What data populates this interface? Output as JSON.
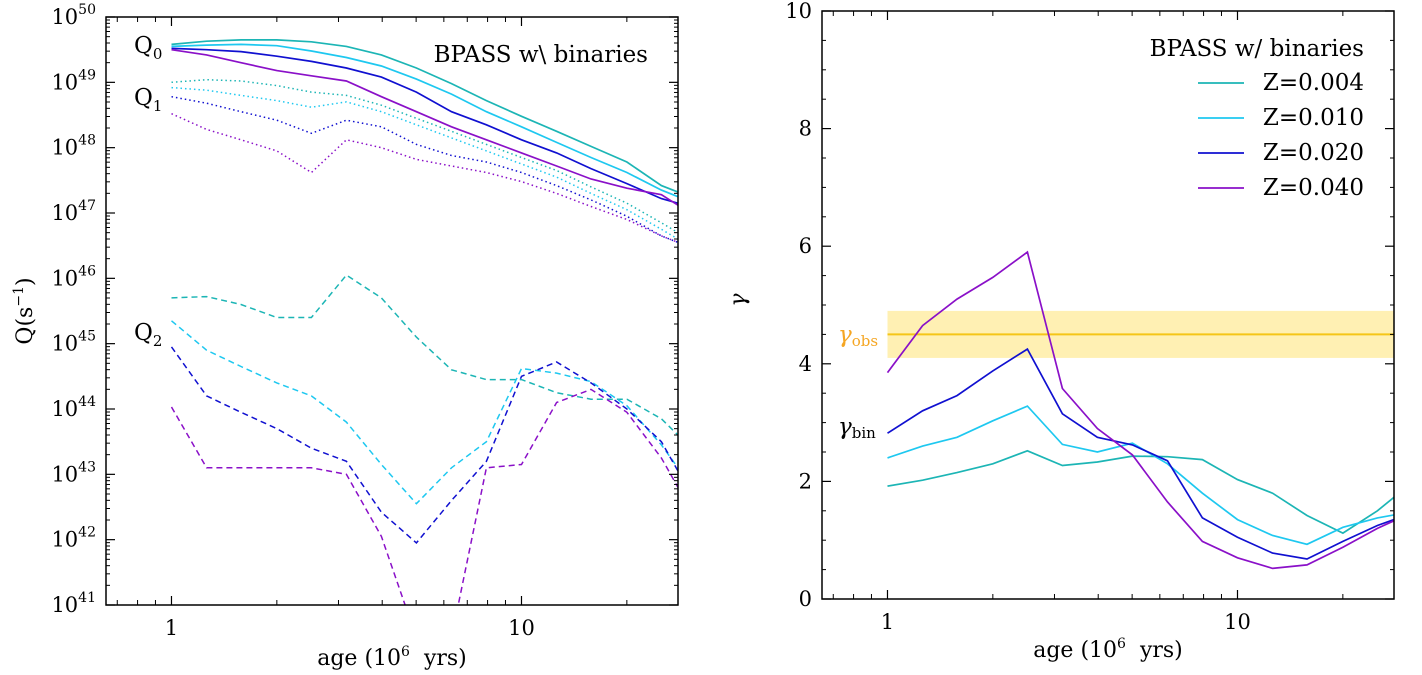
{
  "figure": {
    "title": ""
  },
  "chart_data": [
    {
      "type": "line",
      "panel": "left",
      "xlabel": "age (10^6  yrs)",
      "xlabel_main": "age (10",
      "xlabel_exp": "6",
      "xlabel_tail": "  yrs)",
      "ylabel": "Q(s^-1)",
      "ylabel_main": "Q(s",
      "ylabel_exp": "−1",
      "ylabel_tail": ")",
      "xscale": "log",
      "yscale": "log",
      "xlim": [
        0.65,
        28
      ],
      "ylim_log10": [
        41,
        50
      ],
      "xticks": [
        {
          "v": 1,
          "label": "1"
        },
        {
          "v": 10,
          "label": "10"
        }
      ],
      "yticks": [
        {
          "exp": 41,
          "base": "10",
          "sup": "41"
        },
        {
          "exp": 42,
          "base": "10",
          "sup": "42"
        },
        {
          "exp": 43,
          "base": "10",
          "sup": "43"
        },
        {
          "exp": 44,
          "base": "10",
          "sup": "44"
        },
        {
          "exp": 45,
          "base": "10",
          "sup": "45"
        },
        {
          "exp": 46,
          "base": "10",
          "sup": "46"
        },
        {
          "exp": 47,
          "base": "10",
          "sup": "47"
        },
        {
          "exp": 48,
          "base": "10",
          "sup": "48"
        },
        {
          "exp": 49,
          "base": "10",
          "sup": "49"
        },
        {
          "exp": 50,
          "base": "10",
          "sup": "50"
        }
      ],
      "annotation": "BPASS w\\ binaries",
      "labels": [
        {
          "base": "Q",
          "sub": "0",
          "pos": "top"
        },
        {
          "base": "Q",
          "sub": "1",
          "pos": "upper"
        },
        {
          "base": "Q",
          "sub": "2",
          "pos": "middle"
        }
      ],
      "x": [
        1.0,
        1.26,
        1.58,
        2.0,
        2.51,
        3.16,
        3.98,
        5.01,
        6.31,
        7.94,
        10.0,
        12.6,
        15.8,
        20.0,
        25.1,
        28.0
      ],
      "series": [
        {
          "name": "Z=0.004",
          "quantity": "Q0",
          "style": "solid",
          "color": "#1cb5b5",
          "log_values": [
            49.58,
            49.63,
            49.65,
            49.65,
            49.62,
            49.55,
            49.42,
            49.22,
            48.98,
            48.72,
            48.48,
            48.25,
            48.02,
            47.78,
            47.42,
            47.32
          ]
        },
        {
          "name": "Z=0.010",
          "quantity": "Q0",
          "style": "solid",
          "color": "#1ec8f0",
          "log_values": [
            49.55,
            49.57,
            49.58,
            49.56,
            49.48,
            49.38,
            49.25,
            49.05,
            48.82,
            48.55,
            48.32,
            48.08,
            47.85,
            47.62,
            47.35,
            47.25
          ]
        },
        {
          "name": "Z=0.020",
          "quantity": "Q0",
          "style": "solid",
          "color": "#1010d0",
          "log_values": [
            49.52,
            49.5,
            49.47,
            49.4,
            49.32,
            49.22,
            49.08,
            48.85,
            48.55,
            48.35,
            48.12,
            47.92,
            47.68,
            47.45,
            47.22,
            47.15
          ]
        },
        {
          "name": "Z=0.040",
          "quantity": "Q0",
          "style": "solid",
          "color": "#8a10c8",
          "log_values": [
            49.5,
            49.42,
            49.3,
            49.18,
            49.1,
            49.02,
            48.78,
            48.55,
            48.32,
            48.12,
            47.92,
            47.72,
            47.52,
            47.38,
            47.28,
            47.12
          ]
        },
        {
          "name": "Z=0.004",
          "quantity": "Q1",
          "style": "dotted",
          "color": "#1cb5b5",
          "log_values": [
            49.0,
            49.04,
            49.02,
            48.95,
            48.85,
            48.8,
            48.65,
            48.45,
            48.25,
            48.05,
            47.85,
            47.65,
            47.4,
            47.15,
            46.85,
            46.7
          ]
        },
        {
          "name": "Z=0.010",
          "quantity": "Q1",
          "style": "dotted",
          "color": "#1ec8f0",
          "log_values": [
            48.92,
            48.88,
            48.8,
            48.72,
            48.62,
            48.7,
            48.55,
            48.35,
            48.15,
            47.95,
            47.75,
            47.55,
            47.3,
            47.05,
            46.75,
            46.6
          ]
        },
        {
          "name": "Z=0.020",
          "quantity": "Q1",
          "style": "dotted",
          "color": "#1010d0",
          "log_values": [
            48.78,
            48.68,
            48.55,
            48.42,
            48.22,
            48.42,
            48.32,
            48.05,
            47.88,
            47.78,
            47.62,
            47.42,
            47.2,
            46.95,
            46.65,
            46.55
          ]
        },
        {
          "name": "Z=0.040",
          "quantity": "Q1",
          "style": "dotted",
          "color": "#8a10c8",
          "log_values": [
            48.52,
            48.28,
            48.12,
            47.95,
            47.62,
            48.12,
            48.0,
            47.82,
            47.72,
            47.62,
            47.48,
            47.3,
            47.1,
            46.9,
            46.65,
            46.55
          ]
        },
        {
          "name": "Z=0.004",
          "quantity": "Q2",
          "style": "dashed",
          "color": "#1cb5b5",
          "log_values": [
            45.7,
            45.72,
            45.6,
            45.4,
            45.4,
            46.05,
            45.7,
            45.1,
            44.6,
            44.45,
            44.45,
            44.25,
            44.15,
            44.15,
            43.85,
            43.6
          ]
        },
        {
          "name": "Z=0.010",
          "quantity": "Q2",
          "style": "dashed",
          "color": "#1ec8f0",
          "log_values": [
            45.35,
            44.9,
            44.65,
            44.4,
            44.2,
            43.8,
            43.15,
            42.55,
            43.1,
            43.5,
            44.62,
            44.55,
            44.42,
            44.05,
            43.45,
            43.1
          ]
        },
        {
          "name": "Z=0.020",
          "quantity": "Q2",
          "style": "dashed",
          "color": "#1010d0",
          "log_values": [
            44.95,
            44.2,
            43.95,
            43.7,
            43.4,
            43.2,
            42.42,
            41.95,
            42.6,
            43.2,
            44.5,
            44.72,
            44.4,
            44.0,
            43.5,
            43.05
          ]
        },
        {
          "name": "Z=0.040",
          "quantity": "Q2",
          "style": "dashed",
          "color": "#8a10c8",
          "log_values": [
            44.03,
            43.1,
            43.1,
            43.1,
            43.1,
            43.0,
            42.05,
            40.5,
            40.5,
            43.1,
            43.15,
            44.1,
            44.3,
            43.95,
            43.25,
            42.8
          ]
        }
      ]
    },
    {
      "type": "line",
      "panel": "right",
      "xlabel": "age (10^6  yrs)",
      "xlabel_main": "age (10",
      "xlabel_exp": "6",
      "xlabel_tail": "  yrs)",
      "ylabel": "γ",
      "xscale": "log",
      "yscale": "linear",
      "xlim": [
        0.65,
        28
      ],
      "ylim": [
        0,
        10
      ],
      "xticks": [
        {
          "v": 1,
          "label": "1"
        },
        {
          "v": 10,
          "label": "10"
        }
      ],
      "yticks": [
        {
          "v": 0,
          "label": "0"
        },
        {
          "v": 2,
          "label": "2"
        },
        {
          "v": 4,
          "label": "4"
        },
        {
          "v": 6,
          "label": "6"
        },
        {
          "v": 8,
          "label": "8"
        },
        {
          "v": 10,
          "label": "10"
        }
      ],
      "annotation": "BPASS w/ binaries",
      "legend": {
        "placement": "top-right"
      },
      "gamma_obs": {
        "label_base": "γ",
        "label_sub": "obs",
        "value": 4.5,
        "band": [
          4.1,
          4.9
        ],
        "line_color": "#f5c518",
        "band_color": "#fff0b3",
        "label_color": "#f5a623"
      },
      "gamma_bin_label": {
        "base": "γ",
        "sub": "bin"
      },
      "x": [
        1.0,
        1.26,
        1.58,
        2.0,
        2.51,
        3.16,
        3.98,
        5.01,
        6.31,
        7.94,
        10.0,
        12.6,
        15.8,
        20.0,
        25.1,
        28.0
      ],
      "series": [
        {
          "name": "Z=0.004",
          "color": "#1cb5b5",
          "values": [
            1.92,
            2.02,
            2.15,
            2.3,
            2.52,
            2.27,
            2.33,
            2.43,
            2.42,
            2.37,
            2.03,
            1.8,
            1.42,
            1.12,
            1.5,
            1.73
          ]
        },
        {
          "name": "Z=0.010",
          "color": "#1ec8f0",
          "values": [
            2.4,
            2.6,
            2.75,
            3.03,
            3.28,
            2.63,
            2.5,
            2.65,
            2.3,
            1.8,
            1.35,
            1.08,
            0.93,
            1.22,
            1.38,
            1.43
          ]
        },
        {
          "name": "Z=0.020",
          "color": "#1010d0",
          "values": [
            2.82,
            3.2,
            3.46,
            3.88,
            4.25,
            3.15,
            2.75,
            2.62,
            2.35,
            1.38,
            1.05,
            0.78,
            0.68,
            0.98,
            1.25,
            1.35
          ]
        },
        {
          "name": "Z=0.040",
          "color": "#8a10c8",
          "values": [
            3.85,
            4.65,
            5.1,
            5.47,
            5.9,
            3.58,
            2.9,
            2.45,
            1.65,
            0.98,
            0.7,
            0.52,
            0.58,
            0.88,
            1.2,
            1.33
          ]
        }
      ]
    }
  ]
}
